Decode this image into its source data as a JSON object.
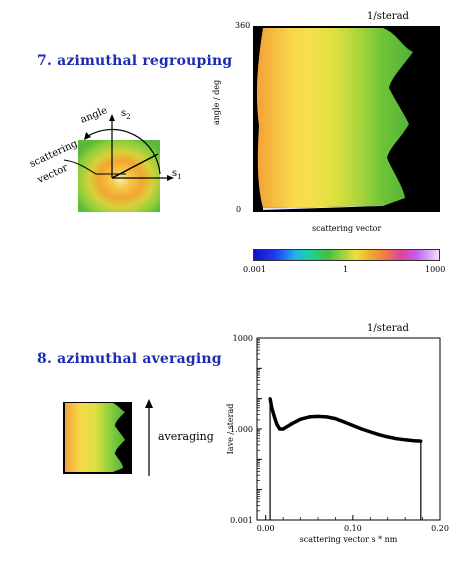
{
  "section7": {
    "title": "7. azimuthal regrouping",
    "sketch": {
      "angle_label": "angle",
      "s2_label": "s",
      "s2_sub": "2",
      "s1_label": "s",
      "s1_sub": "1",
      "scattering_vector_line1": "scattering",
      "scattering_vector_line2": "vector"
    },
    "map": {
      "unit_label": "1/sterad",
      "y_axis_label": "angle / deg",
      "x_axis_label": "scattering vector",
      "y_ticks": [
        "360",
        "0"
      ]
    },
    "colorbar": {
      "tick_labels": [
        "0.001",
        "1",
        "1000"
      ]
    }
  },
  "section8": {
    "title": "8. azimuthal averaging",
    "averaging_label": "averaging",
    "plot": {
      "unit_label": "1/sterad"
    }
  },
  "chart_data": {
    "type": "line",
    "title": "",
    "xlabel": "scattering vector s * nm",
    "ylabel": "Iave / sterad",
    "xlim": [
      -0.01,
      0.2
    ],
    "ylim": [
      0.001,
      1000
    ],
    "y_scale": "log",
    "grid": false,
    "x_ticks": [
      "0.00",
      "0.10",
      "0.20"
    ],
    "y_ticks": [
      "0.001",
      "1.000",
      "1000"
    ],
    "x": [
      0.005,
      0.007,
      0.01,
      0.013,
      0.016,
      0.02,
      0.03,
      0.04,
      0.05,
      0.06,
      0.07,
      0.08,
      0.09,
      0.1,
      0.11,
      0.12,
      0.13,
      0.14,
      0.15,
      0.16,
      0.17,
      0.178
    ],
    "y": [
      10,
      5,
      2.5,
      1.4,
      1.0,
      1.0,
      1.5,
      2.1,
      2.5,
      2.6,
      2.5,
      2.2,
      1.7,
      1.3,
      1.0,
      0.8,
      0.65,
      0.55,
      0.48,
      0.44,
      0.41,
      0.4
    ]
  }
}
